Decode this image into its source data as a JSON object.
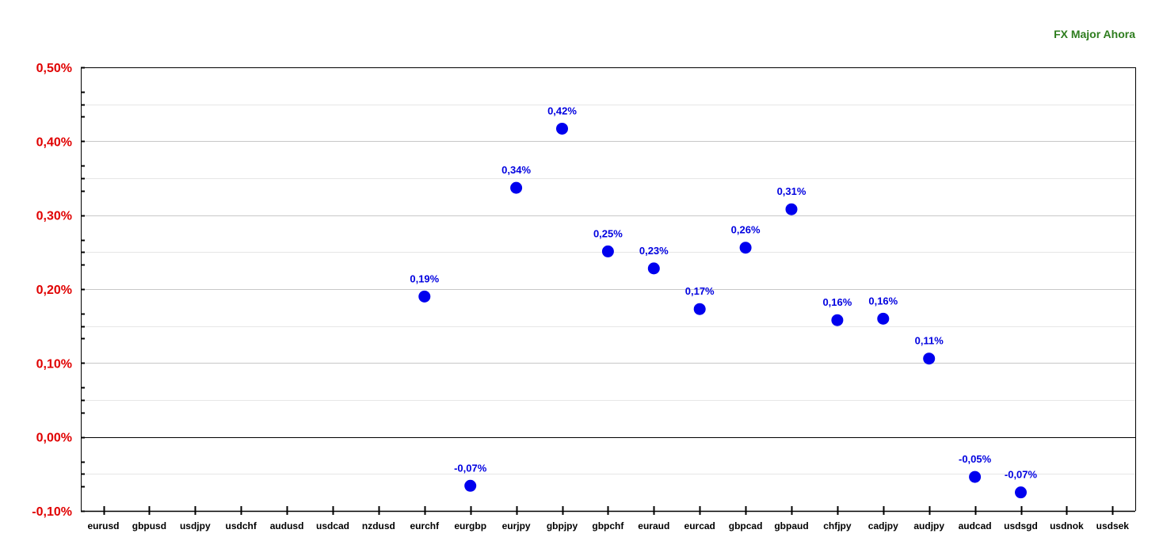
{
  "chart_data": {
    "type": "scatter",
    "title": "FX Major Ahora",
    "xlabel": "",
    "ylabel": "",
    "ylim": [
      -0.1,
      0.5
    ],
    "yticks": [
      {
        "value": 0.5,
        "label": "0,50%"
      },
      {
        "value": 0.4,
        "label": "0,40%"
      },
      {
        "value": 0.3,
        "label": "0,30%"
      },
      {
        "value": 0.2,
        "label": "0,20%"
      },
      {
        "value": 0.1,
        "label": "0,10%"
      },
      {
        "value": 0.0,
        "label": "0,00%"
      },
      {
        "value": -0.1,
        "label": "-0,10%"
      }
    ],
    "categories": [
      "eurusd",
      "gbpusd",
      "usdjpy",
      "usdchf",
      "audusd",
      "usdcad",
      "nzdusd",
      "eurchf",
      "eurgbp",
      "eurjpy",
      "gbpjpy",
      "gbpchf",
      "euraud",
      "eurcad",
      "gbpcad",
      "gbpaud",
      "chfjpy",
      "cadjpy",
      "audjpy",
      "audcad",
      "usdsgd",
      "usdnok",
      "usdsek"
    ],
    "points": [
      {
        "category": "eurchf",
        "value": 0.19,
        "label": "0,19%"
      },
      {
        "category": "eurgbp",
        "value": -0.066,
        "label": "-0,07%"
      },
      {
        "category": "eurjpy",
        "value": 0.337,
        "label": "0,34%"
      },
      {
        "category": "gbpjpy",
        "value": 0.417,
        "label": "0,42%"
      },
      {
        "category": "gbpchf",
        "value": 0.251,
        "label": "0,25%"
      },
      {
        "category": "euraud",
        "value": 0.228,
        "label": "0,23%"
      },
      {
        "category": "eurcad",
        "value": 0.173,
        "label": "0,17%"
      },
      {
        "category": "gbpcad",
        "value": 0.256,
        "label": "0,26%"
      },
      {
        "category": "gbpaud",
        "value": 0.308,
        "label": "0,31%"
      },
      {
        "category": "chfjpy",
        "value": 0.158,
        "label": "0,16%"
      },
      {
        "category": "cadjpy",
        "value": 0.16,
        "label": "0,16%"
      },
      {
        "category": "audjpy",
        "value": 0.106,
        "label": "0,11%"
      },
      {
        "category": "audcad",
        "value": -0.054,
        "label": "-0,05%"
      },
      {
        "category": "usdsgd",
        "value": -0.075,
        "label": "-0,07%"
      }
    ],
    "colors": {
      "marker": "#0000ee",
      "data_label": "#0000e0",
      "y_tick_label": "#e00000",
      "title": "#2e7d1e"
    },
    "grid": true,
    "legend": "none"
  }
}
